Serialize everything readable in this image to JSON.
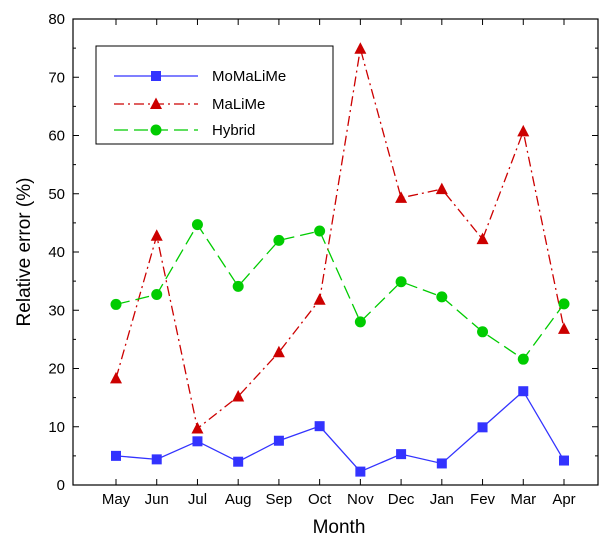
{
  "chart_data": {
    "type": "line",
    "xlabel": "Month",
    "ylabel": "Relative error (%)",
    "categories": [
      "May",
      "Jun",
      "Jul",
      "Aug",
      "Sep",
      "Oct",
      "Nov",
      "Dec",
      "Jan",
      "Fev",
      "Mar",
      "Apr"
    ],
    "ylim": [
      0,
      80
    ],
    "yticks": [
      0,
      10,
      20,
      30,
      40,
      50,
      60,
      70,
      80
    ],
    "grid": false,
    "legend_position": "top-left",
    "series": [
      {
        "name": "MoMaLiMe",
        "color": "#3333ff",
        "marker": "square",
        "line_style": "solid",
        "values": [
          5.0,
          4.4,
          7.5,
          4.0,
          7.6,
          10.1,
          2.3,
          5.3,
          3.7,
          9.9,
          16.1,
          4.2
        ]
      },
      {
        "name": "MaLiMe",
        "color": "#cc0000",
        "marker": "triangle",
        "line_style": "dash-dot",
        "values": [
          18.3,
          42.8,
          9.7,
          15.2,
          22.8,
          31.8,
          74.9,
          49.3,
          50.8,
          42.2,
          60.7,
          26.8
        ]
      },
      {
        "name": "Hybrid",
        "color": "#00cc00",
        "marker": "circle",
        "line_style": "dashed",
        "values": [
          31.0,
          32.7,
          44.7,
          34.1,
          42.0,
          43.6,
          28.0,
          34.9,
          32.3,
          26.3,
          21.6,
          31.1
        ]
      }
    ]
  }
}
